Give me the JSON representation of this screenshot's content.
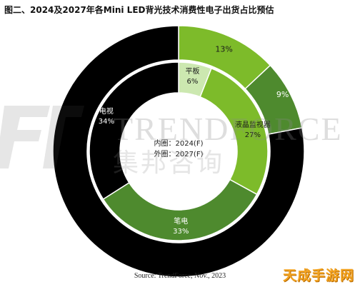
{
  "chart_data": {
    "type": "pie",
    "variant": "nested-donut",
    "title": "图二、2024及2027年各Mini LED背光技术消费性电子出货占比预估",
    "center_label": [
      "内圈：2024(F)",
      "外圈：2027(F)"
    ],
    "source": "Source: TrendForce, Nov., 2023",
    "series": [
      {
        "name": "内圈：2024(F)",
        "ring": "inner",
        "slices": [
          {
            "label": "平板",
            "value": 6,
            "display": "6%",
            "color": "#cce8b0"
          },
          {
            "label": "液晶监视器",
            "value": 27,
            "display": "27%",
            "color": "#7dbb2a"
          },
          {
            "label": "笔电",
            "value": 33,
            "display": "33%",
            "color": "#4e8a2e"
          },
          {
            "label": "电视",
            "value": 34,
            "display": "34%",
            "color": "#000000"
          }
        ]
      },
      {
        "name": "外圈：2027(F)",
        "ring": "outer",
        "slices": [
          {
            "label": "",
            "value": 13,
            "display": "13%",
            "color": "#7dbb2a"
          },
          {
            "label": "",
            "value": 9,
            "display": "9%",
            "color": "#4e8a2e"
          },
          {
            "label": "",
            "value": 78,
            "display": "78%",
            "color": "#000000"
          }
        ]
      }
    ],
    "legend": "none"
  },
  "watermark": {
    "text_en": "TRENDFORCE",
    "text_cn": "集邦咨询"
  },
  "corner_logo": "天成手游网"
}
